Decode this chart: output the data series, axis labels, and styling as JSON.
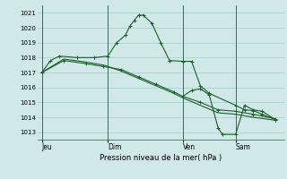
{
  "background_color": "#d0e8e8",
  "grid_color": "#a8cccc",
  "line_color": "#1a5e2a",
  "marker_color": "#1a5e2a",
  "xlabel": "Pression niveau de la mer( hPa )",
  "ylim": [
    1012.5,
    1021.5
  ],
  "yticks": [
    1013,
    1014,
    1015,
    1016,
    1017,
    1018,
    1019,
    1020,
    1021
  ],
  "xlim": [
    0,
    28
  ],
  "day_labels": [
    "Jeu",
    "Dim",
    "Ven",
    "Sam"
  ],
  "day_positions": [
    0.5,
    8.0,
    16.5,
    22.5
  ],
  "vline_positions": [
    0.5,
    8.0,
    16.5,
    22.5
  ],
  "series1_x": [
    0.5,
    1.5,
    2.5,
    4.5,
    6.5,
    8.0,
    9.0,
    10.0,
    10.5,
    11.0,
    11.5,
    12.0,
    13.0,
    14.0,
    15.0,
    16.5,
    17.5,
    18.5,
    19.5,
    22.5,
    23.5,
    24.5,
    25.5,
    27.0
  ],
  "series1_y": [
    1017.0,
    1017.8,
    1018.1,
    1018.0,
    1018.0,
    1018.1,
    1019.0,
    1019.5,
    1020.1,
    1020.5,
    1020.85,
    1020.85,
    1020.3,
    1019.0,
    1017.8,
    1017.75,
    1017.75,
    1016.1,
    1015.6,
    1014.8,
    1014.5,
    1014.45,
    1014.2,
    1013.85
  ],
  "series2_x": [
    0.5,
    3.0,
    5.5,
    7.5,
    9.5,
    11.5,
    13.5,
    15.5,
    16.5,
    18.5,
    20.5,
    22.5,
    24.5,
    27.0
  ],
  "series2_y": [
    1017.0,
    1017.8,
    1017.6,
    1017.4,
    1017.2,
    1016.7,
    1016.2,
    1015.7,
    1015.4,
    1015.0,
    1014.5,
    1014.4,
    1014.2,
    1013.9
  ],
  "series3_x": [
    0.5,
    3.0,
    5.5,
    7.5,
    9.5,
    11.5,
    13.5,
    15.5,
    16.5,
    18.5,
    20.5,
    22.5,
    24.5,
    27.0
  ],
  "series3_y": [
    1017.0,
    1017.9,
    1017.7,
    1017.5,
    1017.1,
    1016.6,
    1016.1,
    1015.6,
    1015.3,
    1014.8,
    1014.3,
    1014.2,
    1014.0,
    1013.8
  ],
  "series4_x": [
    16.5,
    17.5,
    18.5,
    19.5,
    20.5,
    21.0,
    22.5,
    23.5,
    24.5,
    25.5,
    27.0
  ],
  "series4_y": [
    1015.4,
    1015.8,
    1015.9,
    1015.5,
    1013.3,
    1012.85,
    1012.85,
    1014.8,
    1014.5,
    1014.4,
    1013.85
  ]
}
